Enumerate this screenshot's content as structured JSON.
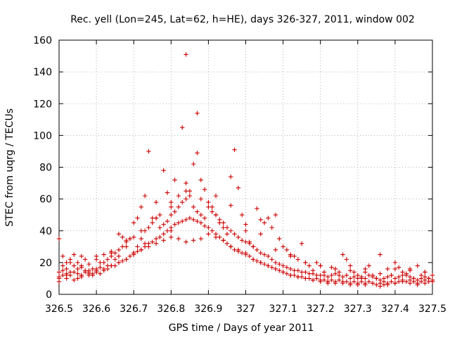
{
  "chart_data": {
    "type": "scatter",
    "title": "Rec. yell (Lon=245, Lat=62, h=HE), days 326-327, 2011, window 002",
    "xlabel": "GPS time / Days of year 2011",
    "ylabel": "STEC from uqrg / TECUs",
    "xlim": [
      326.5,
      327.5
    ],
    "ylim": [
      0,
      160
    ],
    "xticks": [
      326.5,
      326.6,
      326.7,
      326.8,
      326.9,
      327,
      327.1,
      327.2,
      327.3,
      327.4,
      327.5
    ],
    "xtick_labels": [
      "326.5",
      "326.6",
      "326.7",
      "326.8",
      "326.9",
      "327",
      "327.1",
      "327.2",
      "327.3",
      "327.4",
      "327.5"
    ],
    "yticks": [
      0,
      20,
      40,
      60,
      80,
      100,
      120,
      140,
      160
    ],
    "ytick_labels": [
      "0",
      "20",
      "40",
      "60",
      "80",
      "100",
      "120",
      "140",
      "160"
    ],
    "grid": true,
    "marker": "+",
    "color": "#cc0000",
    "series": [
      {
        "x": [
          326.5,
          326.5,
          326.51,
          326.51,
          326.52,
          326.53,
          326.53,
          326.54,
          326.55,
          326.55,
          326.56,
          326.56,
          326.57,
          326.58,
          326.58,
          326.59,
          326.6,
          326.6,
          326.61,
          326.62,
          326.63,
          326.64,
          326.65,
          326.66,
          326.66,
          326.67,
          326.68,
          326.69,
          326.7,
          326.7,
          326.71,
          326.72,
          326.73,
          326.73,
          326.74,
          326.75,
          326.76,
          326.77,
          326.78,
          326.79,
          326.8,
          326.8,
          326.81,
          326.82,
          326.83,
          326.84,
          326.84,
          326.85,
          326.86,
          326.87,
          326.87,
          326.88,
          326.89,
          326.9,
          326.91,
          326.92,
          326.93,
          326.94,
          326.95,
          326.96,
          326.97,
          326.98,
          326.99,
          327,
          327.01,
          327.02,
          327.03,
          327.04,
          327.05,
          327.06,
          327.07,
          327.08,
          327.09,
          327.1,
          327.11,
          327.12,
          327.13,
          327.14,
          327.15,
          327.16,
          327.17,
          327.18,
          327.19,
          327.2,
          327.21,
          327.22,
          327.23,
          327.24,
          327.25,
          327.26,
          327.27,
          327.28,
          327.29,
          327.3,
          327.31,
          327.32,
          327.33,
          327.34,
          327.35,
          327.36,
          327.37,
          327.38,
          327.39,
          327.4,
          327.41,
          327.42,
          327.43,
          327.44,
          327.45,
          327.46,
          327.47,
          327.48,
          327.49,
          327.5
        ],
        "y": [
          35,
          10,
          15,
          24,
          12,
          20,
          14,
          25,
          10,
          16,
          18,
          12,
          22,
          15,
          19,
          13,
          24,
          16,
          20,
          25,
          18,
          27,
          22,
          38,
          24,
          36,
          30,
          35,
          45,
          26,
          48,
          55,
          62,
          32,
          90,
          48,
          58,
          42,
          78,
          64,
          58,
          40,
          72,
          62,
          105,
          70,
          151,
          65,
          82,
          114,
          89,
          60,
          66,
          58,
          55,
          50,
          45,
          42,
          38,
          74,
          91,
          67,
          50,
          40,
          33,
          30,
          54,
          47,
          45,
          48,
          42,
          50,
          35,
          30,
          28,
          25,
          24,
          22,
          32,
          20,
          18,
          15,
          20,
          18,
          14,
          7,
          17,
          16,
          14,
          25,
          22,
          18,
          14,
          12,
          10,
          16,
          18,
          12,
          10,
          25,
          8,
          16,
          12,
          20,
          17,
          14,
          12,
          16,
          10,
          18,
          12,
          14,
          10,
          12
        ]
      },
      {
        "x": [
          326.5,
          326.51,
          326.52,
          326.53,
          326.54,
          326.55,
          326.56,
          326.57,
          326.58,
          326.59,
          326.6,
          326.61,
          326.62,
          326.63,
          326.64,
          326.65,
          326.66,
          326.67,
          326.68,
          326.69,
          326.7,
          326.71,
          326.72,
          326.73,
          326.74,
          326.75,
          326.76,
          326.77,
          326.78,
          326.79,
          326.8,
          326.81,
          326.82,
          326.83,
          326.84,
          326.85,
          326.86,
          326.87,
          326.88,
          326.89,
          326.9,
          326.91,
          326.92,
          326.93,
          326.94,
          326.95,
          326.96,
          326.97,
          326.98,
          326.99,
          327,
          327.01,
          327.02,
          327.03,
          327.04,
          327.05,
          327.06,
          327.07,
          327.08,
          327.09,
          327.1,
          327.11,
          327.12,
          327.13,
          327.14,
          327.15,
          327.16,
          327.17,
          327.18,
          327.19,
          327.2,
          327.21,
          327.22,
          327.23,
          327.24,
          327.25,
          327.26,
          327.27,
          327.28,
          327.29,
          327.3,
          327.31,
          327.32,
          327.33,
          327.34,
          327.35,
          327.36,
          327.37,
          327.38,
          327.39,
          327.4,
          327.41,
          327.42,
          327.43,
          327.44,
          327.45,
          327.46,
          327.47,
          327.48,
          327.49,
          327.5
        ],
        "y": [
          14,
          18,
          16,
          22,
          18,
          20,
          17,
          15,
          14,
          16,
          15,
          17,
          20,
          22,
          24,
          26,
          28,
          30,
          33,
          35,
          36,
          30,
          35,
          40,
          42,
          45,
          48,
          50,
          44,
          46,
          50,
          52,
          55,
          58,
          60,
          62,
          55,
          52,
          50,
          48,
          55,
          52,
          50,
          47,
          45,
          42,
          40,
          38,
          36,
          34,
          33,
          32,
          30,
          28,
          26,
          25,
          24,
          22,
          20,
          19,
          18,
          17,
          16,
          15,
          15,
          14,
          14,
          13,
          13,
          12,
          12,
          12,
          11,
          12,
          13,
          12,
          11,
          12,
          10,
          11,
          10,
          11,
          10,
          12,
          11,
          10,
          9,
          10,
          11,
          12,
          10,
          11,
          12,
          13,
          11,
          10,
          9,
          10,
          11,
          10,
          9
        ]
      },
      {
        "x": [
          326.5,
          326.51,
          326.52,
          326.53,
          326.54,
          326.55,
          326.56,
          326.57,
          326.58,
          326.59,
          326.6,
          326.61,
          326.62,
          326.63,
          326.64,
          326.65,
          326.66,
          326.67,
          326.68,
          326.69,
          326.7,
          326.71,
          326.72,
          326.73,
          326.74,
          326.75,
          326.76,
          326.77,
          326.78,
          326.79,
          326.8,
          326.81,
          326.82,
          326.83,
          326.84,
          326.85,
          326.86,
          326.87,
          326.88,
          326.89,
          326.9,
          326.91,
          326.92,
          326.93,
          326.94,
          326.95,
          326.96,
          326.97,
          326.98,
          326.99,
          327,
          327.01,
          327.02,
          327.03,
          327.04,
          327.05,
          327.06,
          327.07,
          327.08,
          327.09,
          327.1,
          327.11,
          327.12,
          327.13,
          327.14,
          327.15,
          327.16,
          327.17,
          327.18,
          327.19,
          327.2,
          327.21,
          327.22,
          327.23,
          327.24,
          327.25,
          327.26,
          327.27,
          327.28,
          327.29,
          327.3,
          327.31,
          327.32,
          327.33,
          327.34,
          327.35,
          327.36,
          327.37,
          327.38,
          327.39,
          327.4,
          327.41,
          327.42,
          327.43,
          327.44,
          327.45,
          327.46,
          327.47,
          327.48,
          327.49,
          327.5
        ],
        "y": [
          11,
          12,
          13,
          12,
          14,
          13,
          12,
          14,
          13,
          12,
          14,
          13,
          15,
          16,
          18,
          18,
          20,
          21,
          22,
          24,
          25,
          27,
          28,
          30,
          32,
          33,
          35,
          36,
          38,
          40,
          42,
          44,
          45,
          46,
          47,
          48,
          47,
          46,
          45,
          43,
          42,
          40,
          38,
          36,
          34,
          32,
          30,
          28,
          27,
          26,
          25,
          24,
          22,
          21,
          20,
          19,
          18,
          17,
          16,
          15,
          14,
          13,
          12,
          12,
          11,
          11,
          10,
          10,
          9,
          10,
          9,
          9,
          8,
          9,
          8,
          9,
          8,
          8,
          7,
          8,
          7,
          8,
          7,
          8,
          7,
          6,
          7,
          6,
          7,
          8,
          7,
          8,
          9,
          8,
          9,
          8,
          7,
          8,
          9,
          8,
          8
        ]
      },
      {
        "x": [
          326.5,
          326.52,
          326.54,
          326.56,
          326.58,
          326.6,
          326.62,
          326.64,
          326.66,
          326.68,
          326.7,
          326.72,
          326.74,
          326.76,
          326.78,
          326.8,
          326.82,
          326.84,
          326.86,
          326.88,
          326.9,
          326.92,
          326.94,
          326.96,
          326.98,
          327,
          327.02,
          327.04,
          327.06,
          327.08,
          327.1,
          327.12,
          327.14,
          327.16,
          327.18,
          327.2,
          327.22,
          327.24,
          327.26,
          327.28,
          327.3,
          327.32,
          327.34,
          327.36,
          327.38,
          327.4,
          327.42,
          327.44,
          327.46,
          327.48,
          327.5
        ],
        "y": [
          8,
          10,
          9,
          11,
          12,
          14,
          16,
          18,
          20,
          22,
          26,
          28,
          30,
          32,
          34,
          36,
          35,
          33,
          34,
          35,
          38,
          36,
          34,
          30,
          28,
          26,
          22,
          20,
          18,
          16,
          14,
          12,
          11,
          10,
          9,
          8,
          8,
          7,
          7,
          6,
          6,
          6,
          7,
          5,
          6,
          7,
          8,
          7,
          6,
          7,
          8
        ]
      },
      {
        "x": [
          326.52,
          326.56,
          326.6,
          326.64,
          326.68,
          326.72,
          326.76,
          326.8,
          326.84,
          326.88,
          326.92,
          326.96,
          327,
          327.04,
          327.08,
          327.12,
          327.16,
          327.2,
          327.24,
          327.28,
          327.32,
          327.36,
          327.4,
          327.44,
          327.48
        ],
        "y": [
          20,
          24,
          22,
          26,
          34,
          40,
          48,
          55,
          65,
          72,
          62,
          56,
          44,
          38,
          28,
          24,
          20,
          18,
          16,
          15,
          14,
          13,
          16,
          15,
          14
        ]
      }
    ]
  }
}
